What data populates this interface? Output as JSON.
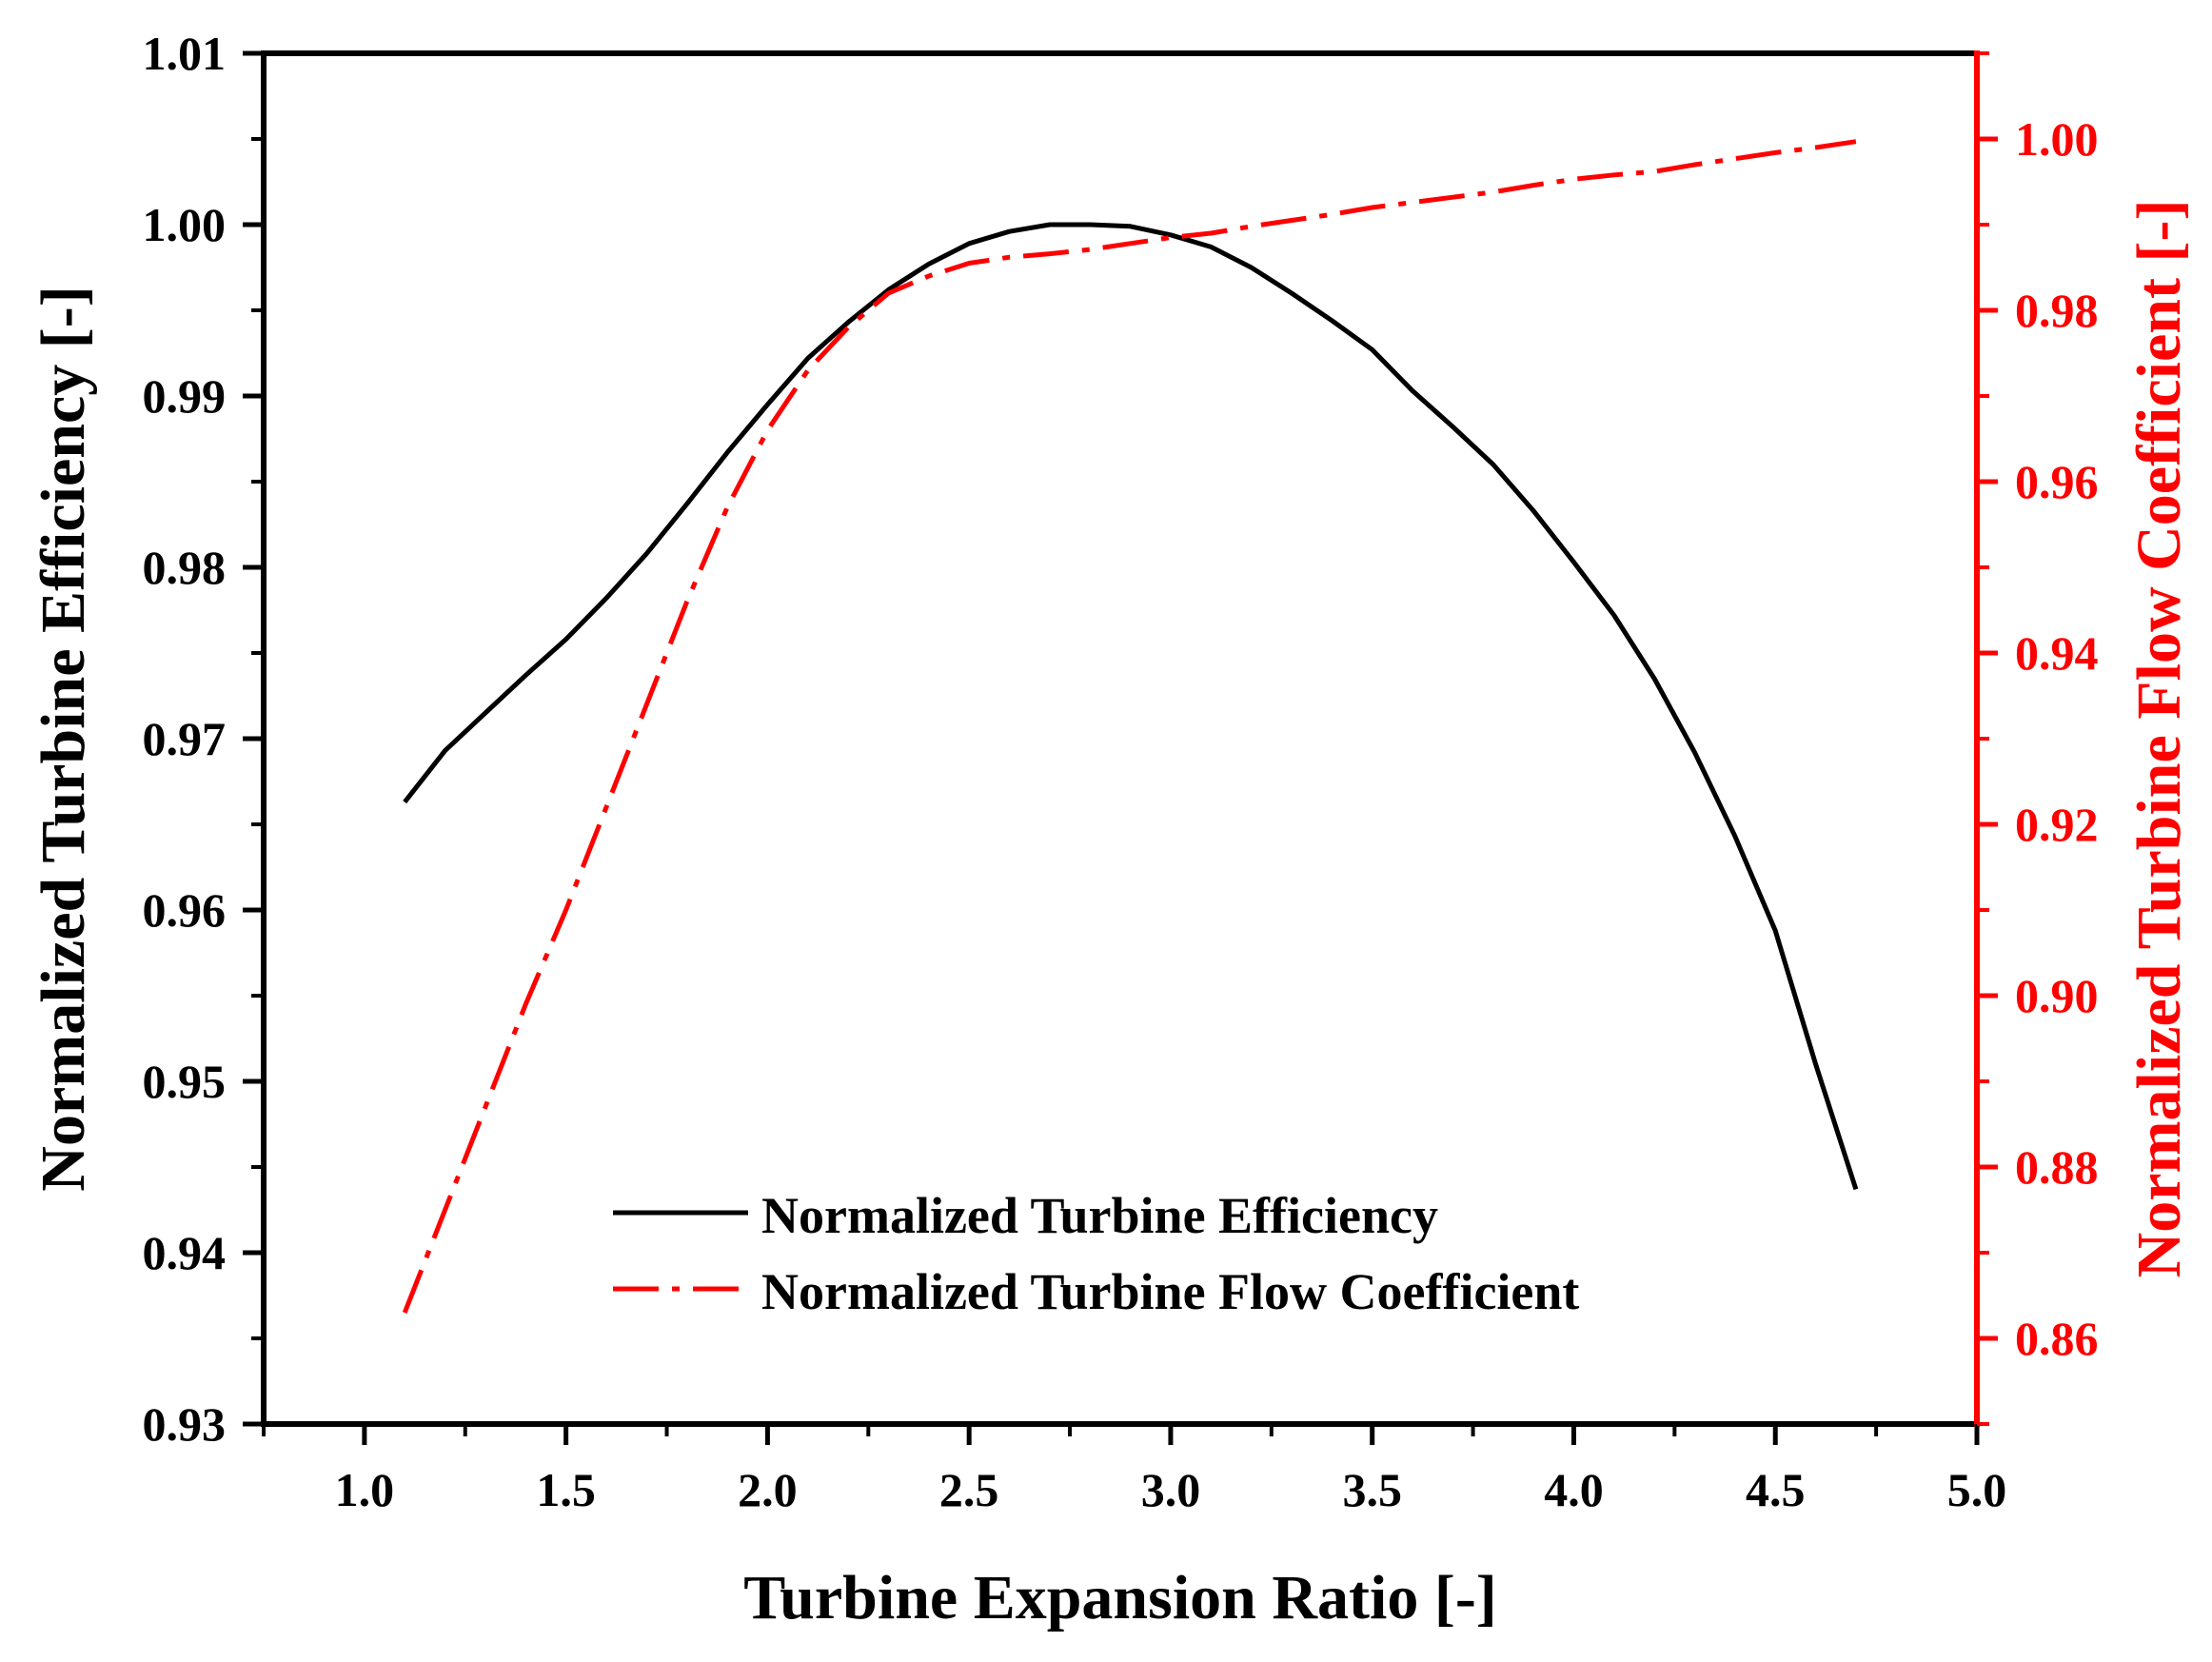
{
  "chart_data": {
    "type": "line",
    "title": "",
    "xlabel": "Turbine Expansion Ratio [-]",
    "ylabel": "Normalized Turbine Efficiency [-]",
    "y2label": "Normalized Turbine Flow Coefficient [-]",
    "xlim": [
      0.75,
      5.0
    ],
    "ylim": [
      0.93,
      1.01
    ],
    "y2lim": [
      0.85,
      1.01
    ],
    "x_ticks": [
      "1.0",
      "1.5",
      "2.0",
      "2.5",
      "3.0",
      "3.5",
      "4.0",
      "4.5",
      "5.0"
    ],
    "y_ticks": [
      "0.93",
      "0.94",
      "0.95",
      "0.96",
      "0.97",
      "0.98",
      "0.99",
      "1.00",
      "1.01"
    ],
    "y2_ticks": [
      "0.86",
      "0.88",
      "0.90",
      "0.92",
      "0.94",
      "0.96",
      "0.98",
      "1.00"
    ],
    "legend_position": "lower-center",
    "series": [
      {
        "name": "Normalized Turbine Efficiency",
        "axis": "left",
        "color": "#000000",
        "style": "solid",
        "x": [
          1.1,
          1.2,
          1.3,
          1.4,
          1.5,
          1.6,
          1.7,
          1.8,
          1.9,
          2.0,
          2.1,
          2.2,
          2.3,
          2.4,
          2.5,
          2.6,
          2.7,
          2.8,
          2.9,
          3.0,
          3.1,
          3.2,
          3.3,
          3.4,
          3.5,
          3.6,
          3.7,
          3.8,
          3.9,
          4.0,
          4.1,
          4.2,
          4.3,
          4.4,
          4.5,
          4.6,
          4.7
        ],
        "values": [
          0.9663,
          0.9693,
          0.9715,
          0.9737,
          0.9758,
          0.9782,
          0.9808,
          0.9837,
          0.9867,
          0.9895,
          0.9922,
          0.9943,
          0.9962,
          0.9977,
          0.9989,
          0.9996,
          1.0,
          1.0,
          0.9999,
          0.9994,
          0.9987,
          0.9975,
          0.996,
          0.9944,
          0.9927,
          0.9903,
          0.9882,
          0.986,
          0.9833,
          0.9803,
          0.9772,
          0.9735,
          0.9692,
          0.9643,
          0.9588,
          0.951,
          0.9437
        ]
      },
      {
        "name": "Normalized Turbine Flow Coefficient",
        "axis": "right",
        "color": "#ff0000",
        "style": "dash-dot",
        "x": [
          1.1,
          1.2,
          1.3,
          1.4,
          1.5,
          1.6,
          1.7,
          1.8,
          1.9,
          2.0,
          2.1,
          2.2,
          2.3,
          2.4,
          2.5,
          2.6,
          2.7,
          2.8,
          2.9,
          3.0,
          3.1,
          3.2,
          3.3,
          3.4,
          3.5,
          3.6,
          3.7,
          3.8,
          3.9,
          4.0,
          4.1,
          4.2,
          4.3,
          4.4,
          4.5,
          4.6,
          4.7
        ],
        "values": [
          0.863,
          0.875,
          0.887,
          0.899,
          0.91,
          0.922,
          0.934,
          0.946,
          0.957,
          0.966,
          0.973,
          0.978,
          0.982,
          0.984,
          0.9855,
          0.9862,
          0.9866,
          0.9871,
          0.9878,
          0.9885,
          0.989,
          0.9898,
          0.9905,
          0.9912,
          0.992,
          0.9926,
          0.9932,
          0.9938,
          0.9946,
          0.9953,
          0.9958,
          0.9962,
          0.997,
          0.9977,
          0.9984,
          0.999,
          0.9997
        ]
      }
    ]
  }
}
